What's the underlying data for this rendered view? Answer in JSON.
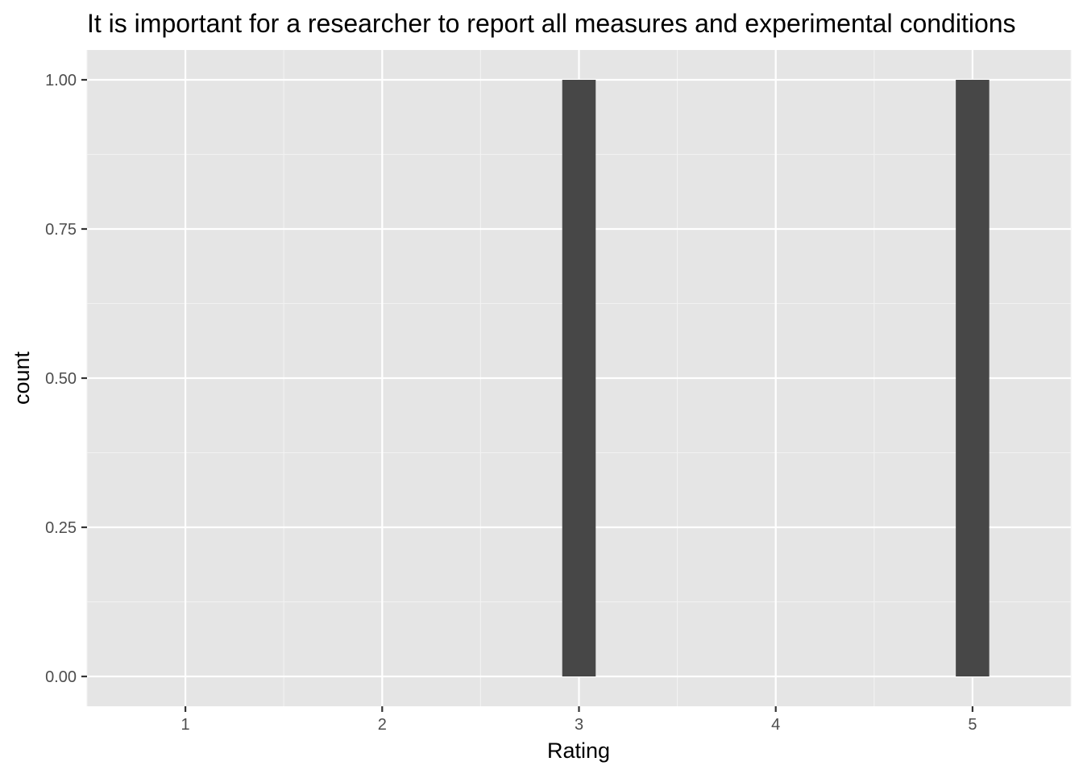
{
  "chart_data": {
    "type": "bar",
    "title": "It is important for a researcher to report all measures and experimental conditions",
    "xlabel": "Rating",
    "ylabel": "count",
    "categories": [
      "1",
      "2",
      "3",
      "4",
      "5"
    ],
    "x": [
      1,
      2,
      3,
      4,
      5
    ],
    "values": [
      0,
      0,
      1,
      0,
      1
    ],
    "bars": [
      {
        "x": 3,
        "count": 1
      },
      {
        "x": 5,
        "count": 1
      }
    ],
    "bar_width": 0.17,
    "xlim": [
      0.5,
      5.5
    ],
    "ylim": [
      -0.05,
      1.05
    ],
    "xticks": [
      {
        "value": 1,
        "label": "1"
      },
      {
        "value": 2,
        "label": "2"
      },
      {
        "value": 3,
        "label": "3"
      },
      {
        "value": 4,
        "label": "4"
      },
      {
        "value": 5,
        "label": "5"
      }
    ],
    "yticks": [
      {
        "value": 0,
        "label": "0.00"
      },
      {
        "value": 0.25,
        "label": "0.25"
      },
      {
        "value": 0.5,
        "label": "0.50"
      },
      {
        "value": 0.75,
        "label": "0.75"
      },
      {
        "value": 1,
        "label": "1.00"
      }
    ],
    "grid": true,
    "legend": "none",
    "colors": {
      "panel": "#e5e5e5",
      "grid_major": "#ffffff",
      "grid_minor": "#f2f2f2",
      "bar": "#474747",
      "tick_text": "#4d4d4d",
      "tick_mark": "#333333"
    }
  }
}
